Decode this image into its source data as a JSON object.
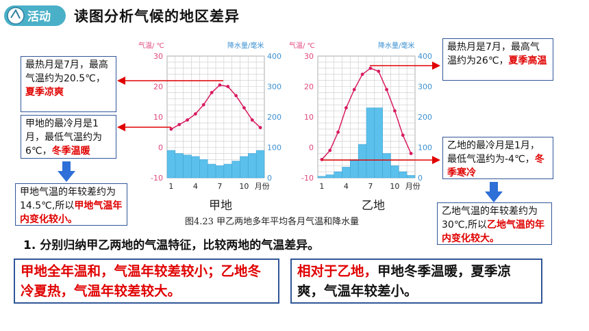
{
  "header": {
    "badge_text": "活动",
    "title": "读图分析气候的地区差异"
  },
  "callouts": {
    "jia_hot_plain": "最热月是7月，最高气温约为20.5℃，",
    "jia_hot_red": "夏季凉爽",
    "jia_cold_plain": "甲地的最冷月是1月，最低气温约为6℃，",
    "jia_cold_red": "冬季温暖",
    "jia_range_plain": "甲地气温的年较差约为14.5℃,所以",
    "jia_range_red": "甲地气温年内变化较小。",
    "yi_hot_plain": "最热月是7月，最高气温约为26℃，",
    "yi_hot_red": "夏季高温",
    "yi_cold_plain": "乙地的最冷月是1月，最低气温约为-4℃，",
    "yi_cold_red": "冬季寒冷",
    "yi_range_plain": "乙地气温的年较差约为30℃,所以",
    "yi_range_red": "乙地气温的年内变化较大。"
  },
  "figure_caption": "图4.23  甲乙两地多年平均各月气温和降水量",
  "question": "1. 分别归纳甲乙两地的气温特征，比较两地的气温差异。",
  "answers": {
    "left_red": "甲地全年温和，气温年较差较小；乙地冬冷夏热，气温年较差较大。",
    "right_red": "相对于乙地，",
    "right_plain": "甲地冬季温暖，夏季凉爽，气温年较差小。"
  },
  "colors": {
    "temp_line": "#d81b60",
    "precip_bar": "#5bc0eb",
    "callout_border": "#2f5597",
    "emphasis_red": "#e00000",
    "arrow_blue": "#2e6fd8"
  },
  "chart_data": [
    {
      "type": "bar+line",
      "place": "甲地",
      "temp_axis_label": "气温/ ℃",
      "precip_axis_label": "降水量/毫米",
      "temp_ylim": [
        -10,
        30
      ],
      "precip_ylim": [
        0,
        400
      ],
      "temp_ticks": [
        30,
        20,
        10,
        0,
        -10
      ],
      "precip_ticks": [
        400,
        300,
        200,
        100,
        0
      ],
      "x_ticks": [
        "1",
        "4",
        "7",
        "10"
      ],
      "x_unit": "月份",
      "months": [
        1,
        2,
        3,
        4,
        5,
        6,
        7,
        8,
        9,
        10,
        11,
        12
      ],
      "temperature": [
        6,
        7.5,
        9,
        11,
        14,
        18,
        20.5,
        20,
        17,
        13,
        9,
        6.5
      ],
      "precipitation": [
        90,
        80,
        75,
        70,
        60,
        45,
        40,
        45,
        55,
        70,
        80,
        90
      ]
    },
    {
      "type": "bar+line",
      "place": "乙地",
      "temp_axis_label": "气温/ ℃",
      "precip_axis_label": "降水量/毫米",
      "temp_ylim": [
        -10,
        30
      ],
      "precip_ylim": [
        0,
        400
      ],
      "temp_ticks": [
        30,
        20,
        10,
        0,
        -10
      ],
      "precip_ticks": [
        400,
        300,
        200,
        100,
        0
      ],
      "x_ticks": [
        "1",
        "4",
        "7",
        "10"
      ],
      "x_unit": "月份",
      "months": [
        1,
        2,
        3,
        4,
        5,
        6,
        7,
        8,
        9,
        10,
        11,
        12
      ],
      "temperature": [
        -4,
        -1,
        5,
        13,
        19,
        24,
        26,
        25,
        19,
        12,
        4,
        -2
      ],
      "precipitation": [
        5,
        10,
        20,
        35,
        60,
        110,
        230,
        230,
        80,
        40,
        20,
        8
      ]
    }
  ]
}
